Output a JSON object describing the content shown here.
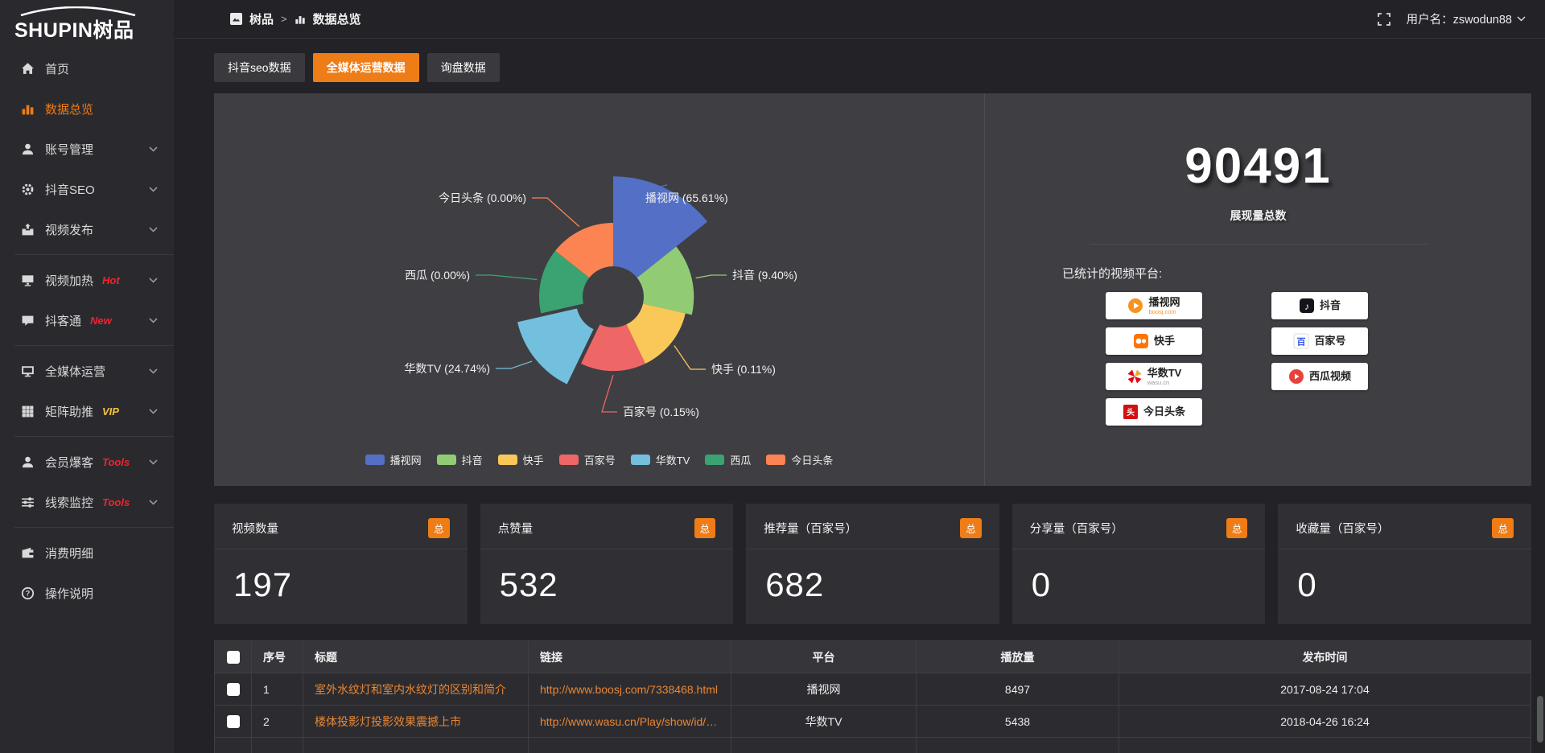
{
  "app": {
    "logo_text": "SHUPIN树品"
  },
  "topbar": {
    "breadcrumb": [
      {
        "label": "树品"
      },
      {
        "label": "数据总览"
      }
    ],
    "separator": ">",
    "user_label": "用户名：zswodun88"
  },
  "sidebar": {
    "items": [
      {
        "label": "首页",
        "icon": "home"
      },
      {
        "label": "数据总览",
        "icon": "chart",
        "active": true
      },
      {
        "label": "账号管理",
        "icon": "user",
        "expandable": true
      },
      {
        "label": "抖音SEO",
        "icon": "gear",
        "expandable": true
      },
      {
        "label": "视频发布",
        "icon": "publish",
        "expandable": true,
        "divider_after": true
      },
      {
        "label": "视频加热",
        "icon": "heat",
        "badge": "Hot",
        "badge_color": "#f5222d",
        "expandable": true
      },
      {
        "label": "抖客通",
        "icon": "chat",
        "badge": "New",
        "badge_color": "#f5222d",
        "expandable": true,
        "divider_after": true
      },
      {
        "label": "全媒体运营",
        "icon": "monitor",
        "expandable": true
      },
      {
        "label": "矩阵助推",
        "icon": "grid",
        "badge": "VIP",
        "badge_color": "#f6c33d",
        "expandable": true,
        "divider_after": true
      },
      {
        "label": "会员爆客",
        "icon": "member",
        "badge": "Tools",
        "badge_color": "#f5222d",
        "expandable": true
      },
      {
        "label": "线索监控",
        "icon": "filter",
        "badge": "Tools",
        "badge_color": "#f5222d",
        "expandable": true,
        "divider_after": true
      },
      {
        "label": "消费明细",
        "icon": "wallet"
      },
      {
        "label": "操作说明",
        "icon": "help"
      }
    ]
  },
  "tabs": [
    {
      "label": "抖音seo数据",
      "active": false
    },
    {
      "label": "全媒体运营数据",
      "active": true
    },
    {
      "label": "询盘数据",
      "active": false
    }
  ],
  "chart_data": {
    "type": "pie",
    "subtype": "nightingale-rose",
    "title": "",
    "legend_position": "bottom",
    "items": [
      {
        "name": "播视网",
        "percent": 65.61,
        "label": "播视网 (65.61%)",
        "color": "#5470c6"
      },
      {
        "name": "抖音",
        "percent": 9.4,
        "label": "抖音 (9.40%)",
        "color": "#91cc75"
      },
      {
        "name": "快手",
        "percent": 0.11,
        "label": "快手 (0.11%)",
        "color": "#fac858"
      },
      {
        "name": "百家号",
        "percent": 0.15,
        "label": "百家号 (0.15%)",
        "color": "#ee6666"
      },
      {
        "name": "华数TV",
        "percent": 24.74,
        "label": "华数TV (24.74%)",
        "color": "#73c0de"
      },
      {
        "name": "西瓜",
        "percent": 0.0,
        "label": "西瓜 (0.00%)",
        "color": "#3ba272"
      },
      {
        "name": "今日头条",
        "percent": 0.0,
        "label": "今日头条 (0.00%)",
        "color": "#fc8452"
      }
    ]
  },
  "summary": {
    "value": "90491",
    "label": "展现量总数"
  },
  "platforms": {
    "label": "已统计的视频平台:",
    "columns": [
      [
        {
          "name": "播视网",
          "sub": "boosj.com",
          "sub_color": "#f7941d",
          "icon": "boosj"
        },
        {
          "name": "快手",
          "sub": "",
          "icon": "kuaishou"
        },
        {
          "name": "华数TV",
          "sub": "wasu.cn",
          "sub_color": "#999999",
          "icon": "wasu"
        },
        {
          "name": "今日头条",
          "sub": "",
          "icon": "toutiao"
        }
      ],
      [
        {
          "name": "抖音",
          "sub": "",
          "icon": "douyin"
        },
        {
          "name": "百家号",
          "sub": "",
          "icon": "baijiahao"
        },
        {
          "name": "西瓜视频",
          "sub": "",
          "icon": "xigua"
        }
      ]
    ]
  },
  "stat_cards": [
    {
      "title": "视频数量",
      "badge": "总",
      "value": "197"
    },
    {
      "title": "点赞量",
      "badge": "总",
      "value": "532"
    },
    {
      "title": "推荐量（百家号）",
      "badge": "总",
      "value": "682"
    },
    {
      "title": "分享量（百家号）",
      "badge": "总",
      "value": "0"
    },
    {
      "title": "收藏量（百家号）",
      "badge": "总",
      "value": "0"
    }
  ],
  "table": {
    "headers": [
      "序号",
      "标题",
      "链接",
      "平台",
      "播放量",
      "发布时间"
    ],
    "rows": [
      {
        "seq": "1",
        "title": "室外水纹灯和室内水纹灯的区别和简介",
        "link": "http://www.boosj.com/7338468.html",
        "platform": "播视网",
        "plays": "8497",
        "time": "2017-08-24 17:04"
      },
      {
        "seq": "2",
        "title": "楼体投影灯投影效果震撼上市",
        "link": "http://www.wasu.cn/Play/show/id/952...",
        "platform": "华数TV",
        "plays": "5438",
        "time": "2018-04-26 16:24"
      }
    ]
  },
  "colors": {
    "accent": "#ee7c17",
    "link": "#e98634",
    "panel": "#3f3f43"
  }
}
